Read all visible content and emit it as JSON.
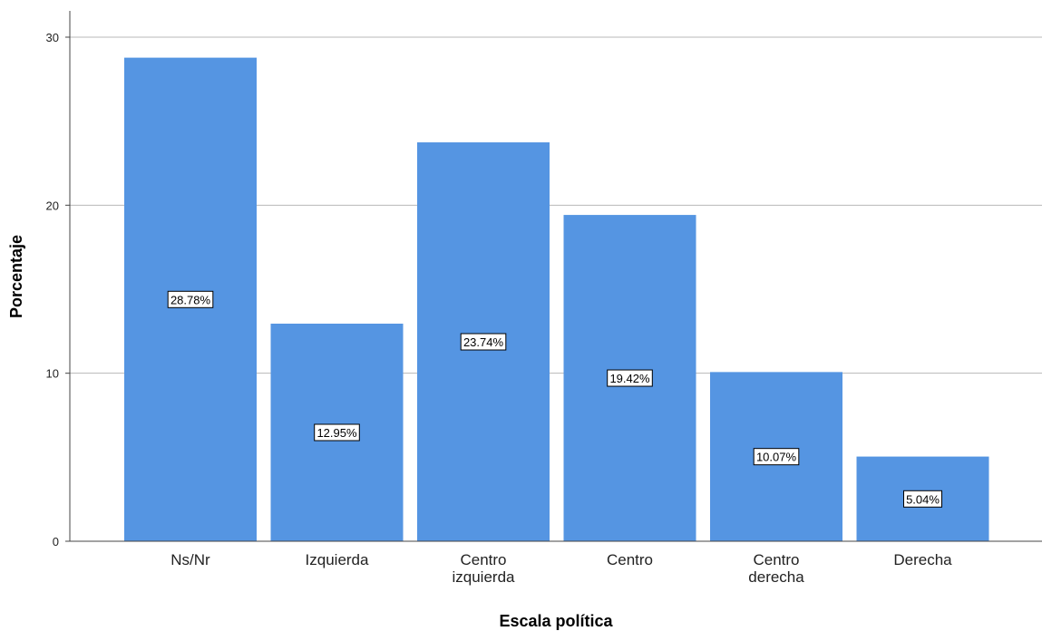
{
  "chart_data": {
    "type": "bar",
    "title": "",
    "xlabel": "Escala política",
    "ylabel": "Porcentaje",
    "ylim": [
      0,
      31
    ],
    "yticks": [
      0,
      10,
      20,
      30
    ],
    "grid": true,
    "bar_color": "#5595e2",
    "categories": [
      [
        "Ns/Nr"
      ],
      [
        "Izquierda"
      ],
      [
        "Centro",
        "izquierda"
      ],
      [
        "Centro"
      ],
      [
        "Centro",
        "derecha"
      ],
      [
        "Derecha"
      ]
    ],
    "values": [
      28.78,
      12.95,
      23.74,
      19.42,
      10.07,
      5.04
    ],
    "data_labels": [
      "28.78%",
      "12.95%",
      "23.74%",
      "19.42%",
      "10.07%",
      "5.04%"
    ]
  }
}
